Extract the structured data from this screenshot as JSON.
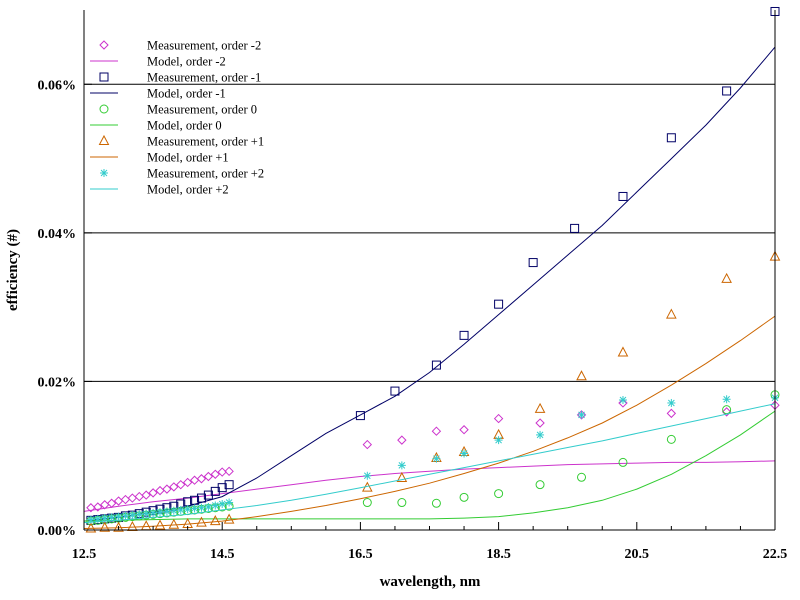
{
  "chart_data": {
    "type": "scatter",
    "xlabel": "wavelength, nm",
    "ylabel": "efficiency (#)",
    "xlim": [
      12.5,
      22.5
    ],
    "ylim": [
      0.0,
      0.0007
    ],
    "x_ticks": [
      12.5,
      14.5,
      16.5,
      18.5,
      20.5,
      22.5
    ],
    "x_tick_labels": [
      "12.5",
      "14.5",
      "16.5",
      "18.5",
      "20.5",
      "22.5"
    ],
    "y_ticks": [
      0.0,
      0.0002,
      0.0004,
      0.0006
    ],
    "y_tick_labels": [
      "0.00%",
      "0.02%",
      "0.04%",
      "0.06%"
    ],
    "grid": "horizontal",
    "legend_position": "top-left",
    "series": [
      {
        "name": "Measurement, order -2",
        "kind": "scatter",
        "marker": "diamond",
        "color": "#cc33cc",
        "x": [
          12.6,
          12.7,
          12.8,
          12.9,
          13.0,
          13.1,
          13.2,
          13.3,
          13.4,
          13.5,
          13.6,
          13.7,
          13.8,
          13.9,
          14.0,
          14.1,
          14.2,
          14.3,
          14.4,
          14.5,
          14.6,
          16.6,
          17.1,
          17.6,
          18.0,
          18.5,
          19.1,
          19.7,
          20.3,
          21.0,
          21.8,
          22.5
        ],
        "y": [
          3e-05,
          3.1e-05,
          3.4e-05,
          3.6e-05,
          3.9e-05,
          4.1e-05,
          4.3e-05,
          4.5e-05,
          4.7e-05,
          5e-05,
          5.3e-05,
          5.5e-05,
          5.8e-05,
          6.1e-05,
          6.4e-05,
          6.7e-05,
          6.9e-05,
          7.2e-05,
          7.5e-05,
          7.8e-05,
          7.9e-05,
          0.000115,
          0.000121,
          0.000133,
          0.000135,
          0.00015,
          0.000144,
          0.000155,
          0.000171,
          0.000157,
          0.000159,
          0.000168
        ]
      },
      {
        "name": "Model, order -2",
        "kind": "line",
        "color": "#cc33cc",
        "x": [
          12.5,
          13.0,
          13.5,
          14.0,
          14.5,
          15.0,
          15.5,
          16.0,
          16.5,
          17.0,
          17.5,
          18.0,
          18.5,
          19.0,
          19.5,
          20.0,
          20.5,
          21.0,
          21.5,
          22.0,
          22.5
        ],
        "y": [
          2.5e-05,
          3.2e-05,
          3.8e-05,
          4.3e-05,
          4.9e-05,
          5.5e-05,
          6.1e-05,
          6.7e-05,
          7.2e-05,
          7.6e-05,
          7.9e-05,
          8.2e-05,
          8.4e-05,
          8.6e-05,
          8.8e-05,
          8.9e-05,
          9e-05,
          9.1e-05,
          9.1e-05,
          9.2e-05,
          9.3e-05
        ]
      },
      {
        "name": "Measurement, order -1",
        "kind": "scatter",
        "marker": "square",
        "color": "#000066",
        "x": [
          12.6,
          12.7,
          12.8,
          12.9,
          13.0,
          13.1,
          13.2,
          13.3,
          13.4,
          13.5,
          13.6,
          13.7,
          13.8,
          13.9,
          14.0,
          14.1,
          14.2,
          14.3,
          14.4,
          14.5,
          14.6,
          16.5,
          17.0,
          17.6,
          18.0,
          18.5,
          19.0,
          19.6,
          20.3,
          21.0,
          21.8,
          22.5
        ],
        "y": [
          1.3e-05,
          1.4e-05,
          1.5e-05,
          1.6e-05,
          1.7e-05,
          1.9e-05,
          2e-05,
          2.2e-05,
          2.4e-05,
          2.6e-05,
          2.8e-05,
          3e-05,
          3.2e-05,
          3.5e-05,
          3.8e-05,
          4e-05,
          4.3e-05,
          4.7e-05,
          5.2e-05,
          5.7e-05,
          6.1e-05,
          0.000154,
          0.000187,
          0.000222,
          0.000262,
          0.000304,
          0.00036,
          0.000406,
          0.000449,
          0.000528,
          0.000591,
          0.000698
        ]
      },
      {
        "name": "Model, order -1",
        "kind": "line",
        "color": "#000066",
        "x": [
          12.5,
          13.0,
          13.5,
          14.0,
          14.5,
          15.0,
          15.5,
          16.0,
          16.5,
          17.0,
          17.5,
          18.0,
          18.5,
          19.0,
          19.5,
          20.0,
          20.5,
          21.0,
          21.5,
          22.0,
          22.5
        ],
        "y": [
          1.2e-05,
          1.7e-05,
          2.4e-05,
          3.2e-05,
          4.5e-05,
          7e-05,
          0.0001,
          0.00013,
          0.000155,
          0.00018,
          0.000212,
          0.00025,
          0.00029,
          0.00033,
          0.00037,
          0.00041,
          0.000455,
          0.0005,
          0.000545,
          0.000595,
          0.00065
        ]
      },
      {
        "name": "Measurement, order 0",
        "kind": "scatter",
        "marker": "circle",
        "color": "#33cc33",
        "x": [
          12.6,
          12.7,
          12.8,
          12.9,
          13.0,
          13.1,
          13.2,
          13.3,
          13.4,
          13.5,
          13.6,
          13.7,
          13.8,
          13.9,
          14.0,
          14.1,
          14.2,
          14.3,
          14.4,
          14.5,
          14.6,
          16.6,
          17.1,
          17.6,
          18.0,
          18.5,
          19.1,
          19.7,
          20.3,
          21.0,
          21.8,
          22.5
        ],
        "y": [
          1.2e-05,
          1.3e-05,
          1.4e-05,
          1.5e-05,
          1.6e-05,
          1.7e-05,
          1.8e-05,
          1.9e-05,
          2e-05,
          2.1e-05,
          2.2e-05,
          2.3e-05,
          2.4e-05,
          2.5e-05,
          2.6e-05,
          2.7e-05,
          2.8e-05,
          2.9e-05,
          3e-05,
          3.1e-05,
          3.2e-05,
          3.7e-05,
          3.7e-05,
          3.6e-05,
          4.4e-05,
          4.9e-05,
          6.1e-05,
          7.1e-05,
          9.1e-05,
          0.000122,
          0.000162,
          0.000182
        ]
      },
      {
        "name": "Model, order 0",
        "kind": "line",
        "color": "#33cc33",
        "x": [
          12.5,
          13.0,
          13.5,
          14.0,
          14.5,
          15.0,
          15.5,
          16.0,
          16.5,
          17.0,
          17.5,
          18.0,
          18.5,
          19.0,
          19.5,
          20.0,
          20.5,
          21.0,
          21.5,
          22.0,
          22.5
        ],
        "y": [
          1.2e-05,
          1.3e-05,
          1.4e-05,
          1.5e-05,
          1.5e-05,
          1.5e-05,
          1.5e-05,
          1.5e-05,
          1.5e-05,
          1.5e-05,
          1.5e-05,
          1.6e-05,
          1.8e-05,
          2.3e-05,
          3e-05,
          4e-05,
          5.5e-05,
          7.5e-05,
          0.0001,
          0.000128,
          0.00016
        ]
      },
      {
        "name": "Measurement, order +1",
        "kind": "scatter",
        "marker": "triangle",
        "color": "#cc6600",
        "x": [
          12.6,
          12.8,
          13.0,
          13.2,
          13.4,
          13.6,
          13.8,
          14.0,
          14.2,
          14.4,
          14.6,
          16.6,
          17.1,
          17.6,
          18.0,
          18.5,
          19.1,
          19.7,
          20.3,
          21.0,
          21.8,
          22.5
        ],
        "y": [
          2e-06,
          3e-06,
          3e-06,
          4e-06,
          5e-06,
          6e-06,
          7e-06,
          8e-06,
          1e-05,
          1.2e-05,
          1.4e-05,
          5.7e-05,
          7e-05,
          9.7e-05,
          0.000105,
          0.000128,
          0.000163,
          0.000207,
          0.000239,
          0.00029,
          0.000338,
          0.000368
        ]
      },
      {
        "name": "Model, order +1",
        "kind": "line",
        "color": "#cc6600",
        "x": [
          12.5,
          13.0,
          13.5,
          14.0,
          14.5,
          15.0,
          15.5,
          16.0,
          16.5,
          17.0,
          17.5,
          18.0,
          18.5,
          19.0,
          19.5,
          20.0,
          20.5,
          21.0,
          21.5,
          22.0,
          22.5
        ],
        "y": [
          2e-06,
          3e-06,
          5e-06,
          8e-06,
          1.2e-05,
          1.8e-05,
          2.5e-05,
          3.3e-05,
          4.2e-05,
          5.2e-05,
          6.3e-05,
          7.6e-05,
          9e-05,
          0.000106,
          0.000124,
          0.000144,
          0.000168,
          0.000195,
          0.000224,
          0.000255,
          0.000288
        ]
      },
      {
        "name": "Measurement, order +2",
        "kind": "scatter",
        "marker": "star",
        "color": "#33cccc",
        "x": [
          12.6,
          12.7,
          12.8,
          12.9,
          13.0,
          13.1,
          13.2,
          13.3,
          13.4,
          13.5,
          13.6,
          13.7,
          13.8,
          13.9,
          14.0,
          14.1,
          14.2,
          14.3,
          14.4,
          14.5,
          14.6,
          16.6,
          17.1,
          17.6,
          18.0,
          18.5,
          19.1,
          19.7,
          20.3,
          21.0,
          21.8,
          22.5
        ],
        "y": [
          1.4e-05,
          1.5e-05,
          1.6e-05,
          1.7e-05,
          1.8e-05,
          1.9e-05,
          2e-05,
          2.1e-05,
          2.2e-05,
          2.3e-05,
          2.4e-05,
          2.5e-05,
          2.6e-05,
          2.7e-05,
          2.8e-05,
          2.9e-05,
          3e-05,
          3.1e-05,
          3.3e-05,
          3.5e-05,
          3.7e-05,
          7.3e-05,
          8.7e-05,
          9.6e-05,
          0.000103,
          0.000121,
          0.000128,
          0.000155,
          0.000175,
          0.000171,
          0.000176,
          0.000178
        ]
      },
      {
        "name": "Model, order +2",
        "kind": "line",
        "color": "#33cccc",
        "x": [
          12.5,
          13.0,
          13.5,
          14.0,
          14.5,
          15.0,
          15.5,
          16.0,
          16.5,
          17.0,
          17.5,
          18.0,
          18.5,
          19.0,
          19.5,
          20.0,
          20.5,
          21.0,
          21.5,
          22.0,
          22.5
        ],
        "y": [
          1e-05,
          1.3e-05,
          1.7e-05,
          2.1e-05,
          2.7e-05,
          3.3e-05,
          4e-05,
          4.8e-05,
          5.7e-05,
          6.6e-05,
          7.5e-05,
          8.4e-05,
          9.3e-05,
          0.000102,
          0.000111,
          0.00012,
          0.00013,
          0.00014,
          0.00015,
          0.00016,
          0.00017
        ]
      }
    ]
  }
}
